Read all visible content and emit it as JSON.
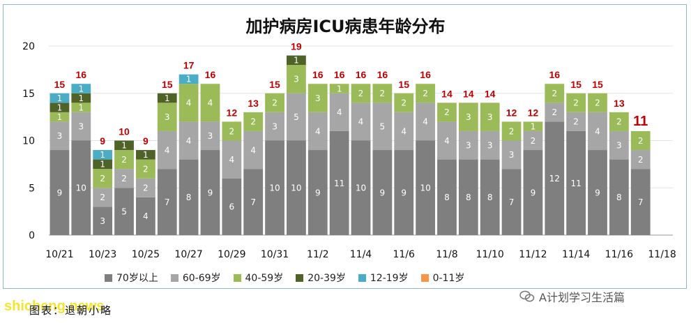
{
  "chart_data": {
    "type": "bar",
    "stacked": true,
    "title": "加护病房ICU病患年龄分布",
    "categories": [
      "10/21",
      "10/22",
      "10/23",
      "10/24",
      "10/25",
      "10/26",
      "10/27",
      "10/28",
      "10/29",
      "10/30",
      "10/31",
      "11/1",
      "11/2",
      "11/3",
      "11/4",
      "11/5",
      "11/6",
      "11/7",
      "11/8",
      "11/9",
      "11/10",
      "11/11",
      "11/12",
      "11/13",
      "11/14",
      "11/15",
      "11/16",
      "11/17",
      "11/18"
    ],
    "x_tick_labels": [
      "10/21",
      "10/23",
      "10/25",
      "10/27",
      "10/29",
      "10/31",
      "11/2",
      "11/4",
      "11/6",
      "11/8",
      "11/10",
      "11/12",
      "11/14",
      "11/16",
      "11/18"
    ],
    "series": [
      {
        "name": "70岁以上",
        "color": "#7f7f7f",
        "values": [
          9,
          10,
          3,
          5,
          4,
          7,
          8,
          9,
          6,
          7,
          10,
          10,
          9,
          11,
          10,
          9,
          9,
          10,
          8,
          8,
          8,
          7,
          9,
          12,
          11,
          9,
          8,
          7,
          null
        ]
      },
      {
        "name": "60-69岁",
        "color": "#a6a6a6",
        "values": [
          3,
          3,
          2,
          2,
          2,
          4,
          4,
          3,
          4,
          4,
          3,
          5,
          4,
          4,
          4,
          5,
          4,
          4,
          4,
          3,
          3,
          3,
          2,
          2,
          2,
          4,
          3,
          2,
          null
        ]
      },
      {
        "name": "40-59岁",
        "color": "#9bbb59",
        "values": [
          1,
          1,
          2,
          2,
          2,
          3,
          4,
          4,
          2,
          2,
          2,
          3,
          3,
          1,
          2,
          2,
          2,
          2,
          2,
          3,
          3,
          2,
          1,
          2,
          2,
          2,
          2,
          2,
          null
        ]
      },
      {
        "name": "20-39岁",
        "color": "#4f6228",
        "values": [
          1,
          1,
          1,
          1,
          1,
          1,
          0,
          0,
          0,
          0,
          0,
          1,
          0,
          0,
          0,
          0,
          0,
          0,
          0,
          0,
          0,
          0,
          0,
          0,
          0,
          0,
          0,
          0,
          null
        ]
      },
      {
        "name": "12-19岁",
        "color": "#4bacc6",
        "values": [
          1,
          1,
          1,
          0,
          0,
          0,
          1,
          0,
          0,
          0,
          0,
          0,
          0,
          0,
          0,
          0,
          0,
          0,
          0,
          0,
          0,
          0,
          0,
          0,
          0,
          0,
          0,
          0,
          null
        ]
      },
      {
        "name": "0-11岁",
        "color": "#f79646",
        "values": [
          0,
          0,
          0,
          0,
          0,
          0,
          0,
          0,
          0,
          0,
          0,
          0,
          0,
          0,
          0,
          0,
          0,
          0,
          0,
          0,
          0,
          0,
          0,
          0,
          0,
          0,
          0,
          0,
          null
        ]
      }
    ],
    "totals": [
      15,
      16,
      9,
      10,
      9,
      15,
      17,
      16,
      12,
      13,
      15,
      19,
      16,
      16,
      16,
      16,
      15,
      16,
      14,
      14,
      14,
      12,
      12,
      16,
      15,
      15,
      13,
      11,
      null
    ],
    "total_label_color": "#c00000",
    "ylim": [
      0,
      20
    ],
    "yticks": [
      0,
      5,
      10,
      15,
      20
    ],
    "grid": true,
    "legend_position": "bottom"
  },
  "footer": {
    "source_note": "图表：退朝小略",
    "brand": "A计划学习生活篇",
    "watermark": "shicheng.news"
  }
}
